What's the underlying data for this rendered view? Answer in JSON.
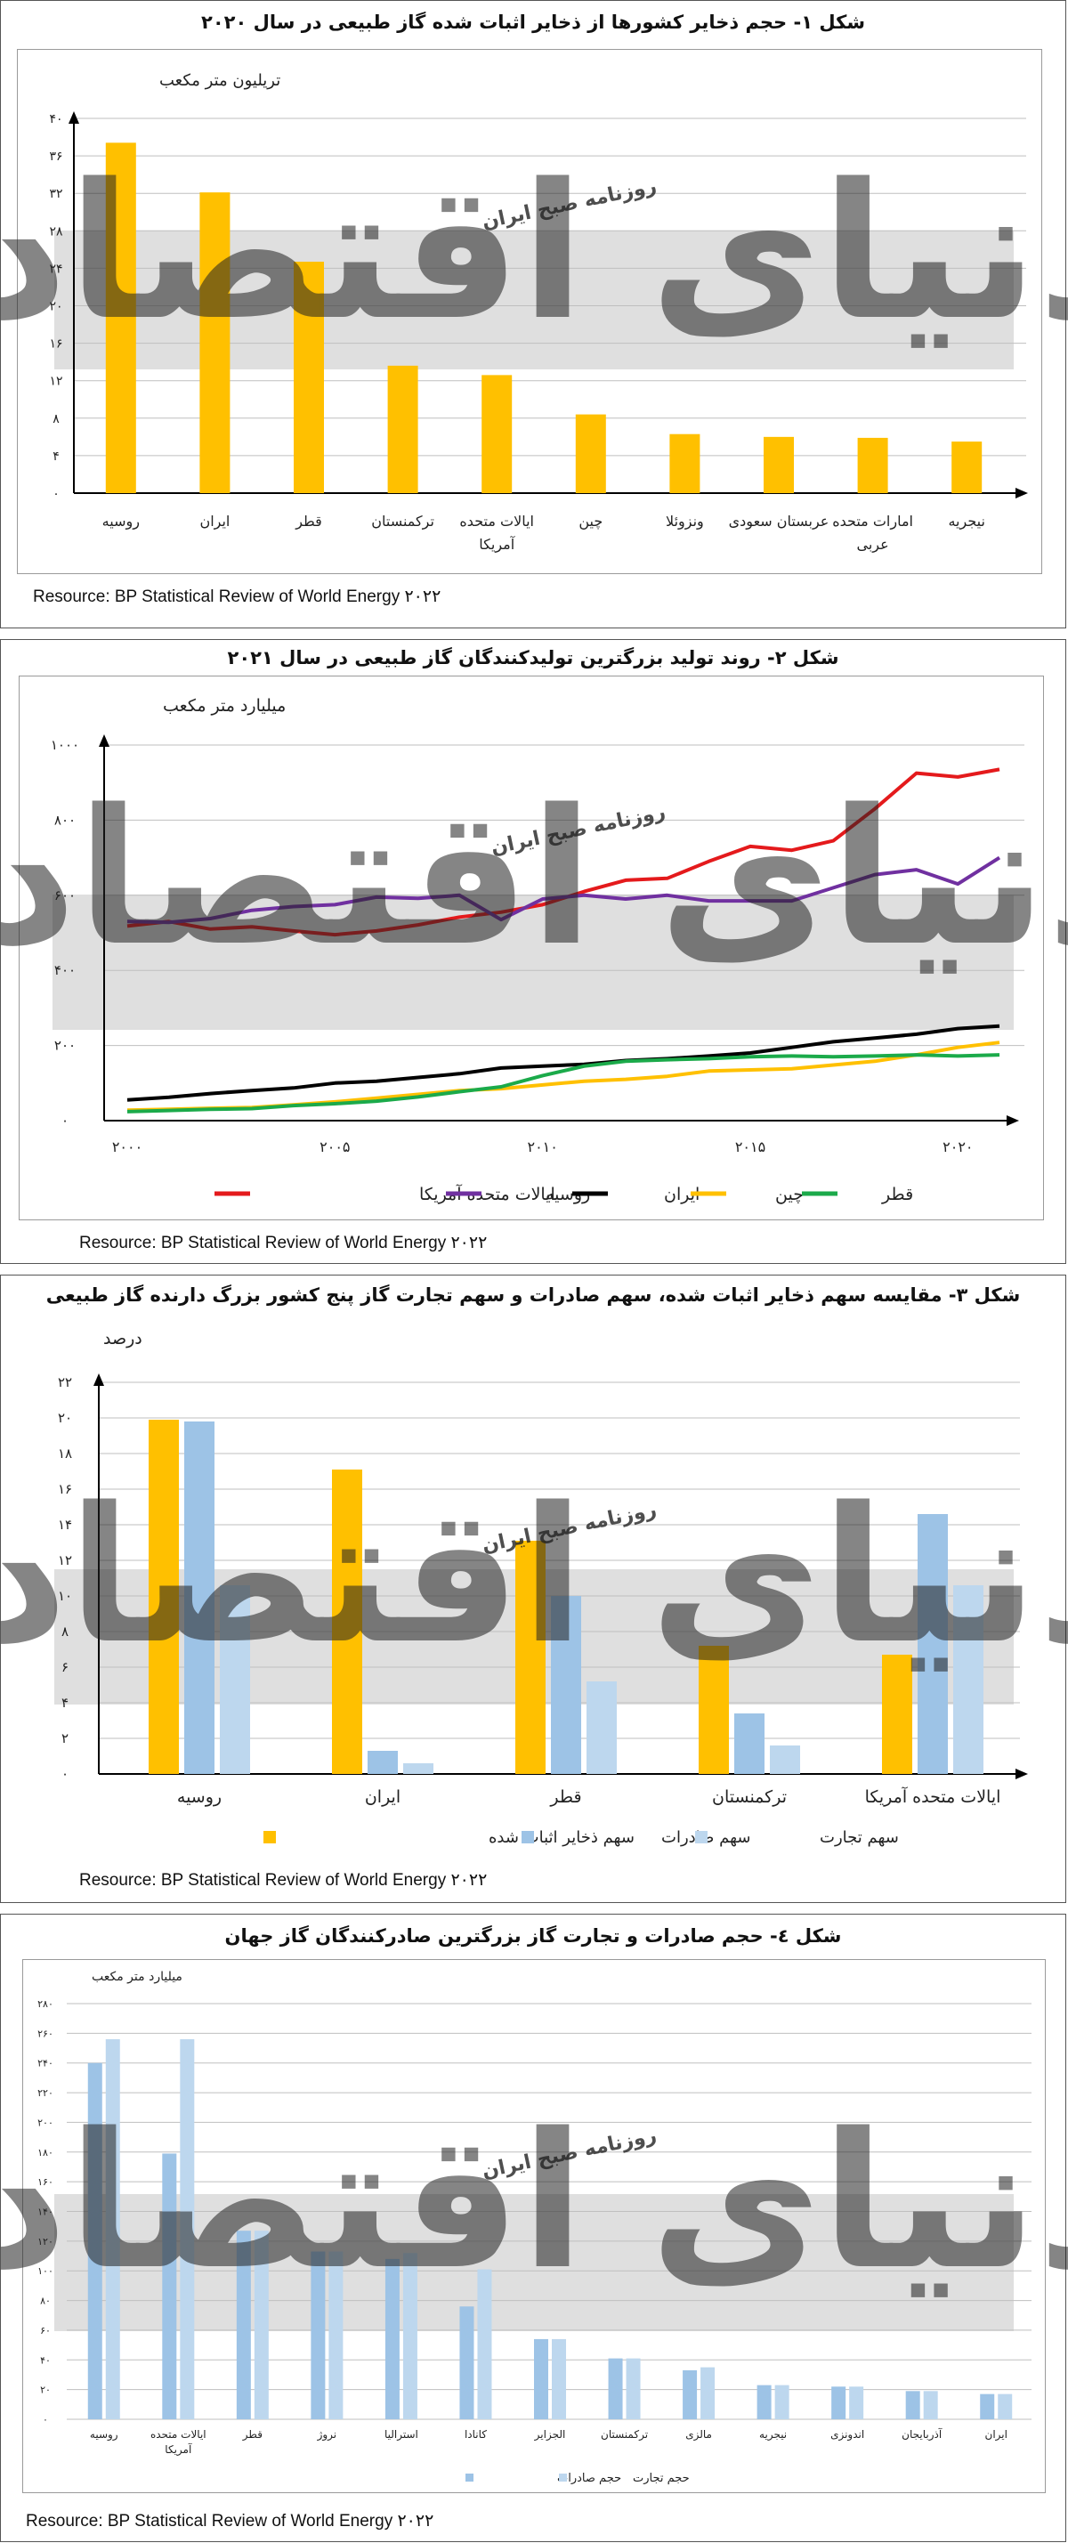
{
  "source_label": "Resource: BP Statistical Review of World Energy ۲۰۲۲",
  "watermark": {
    "brand": "دنیای اقتصاد",
    "tagline": "روزنامه صبح ایران"
  },
  "colors": {
    "yellow": "#FFC000",
    "blue_mid": "#9DC3E6",
    "blue_light": "#BDD7EE",
    "red": "#E41A1C",
    "purple": "#7030A0",
    "black": "#000000",
    "gold": "#FFC000",
    "green": "#1BAA4A",
    "band": "#D9D9D9"
  },
  "chart_data": [
    {
      "id": "fig1",
      "type": "bar",
      "title": "شکل ۱- حجم ذخایر کشورها از ذخایر اثبات شده گاز طبیعی در سال ۲۰۲۰",
      "ylabel": "تریلیون متر مکعب",
      "ylim": [
        0,
        40
      ],
      "yticks": [
        "۰",
        "۴",
        "۸",
        "۱۲",
        "۱۶",
        "۲۰",
        "۲۴",
        "۲۸",
        "۳۲",
        "۳۶",
        "۴۰"
      ],
      "categories": [
        "روسیه",
        "ایران",
        "قطر",
        "ترکمنستان",
        "ایالات متحده آمریکا",
        "چین",
        "ونزوئلا",
        "عربستان سعودی",
        "امارات متحده عربی",
        "نیجریه"
      ],
      "category_lines": [
        [
          "روسیه"
        ],
        [
          "ایران"
        ],
        [
          "قطر"
        ],
        [
          "ترکمنستان"
        ],
        [
          "ایالات متحده",
          "آمریکا"
        ],
        [
          "چین"
        ],
        [
          "ونزوئلا"
        ],
        [
          "عربستان سعودی"
        ],
        [
          "امارات متحده",
          "عربی"
        ],
        [
          "نیجریه"
        ]
      ],
      "values": [
        37.4,
        32.1,
        24.7,
        13.6,
        12.6,
        8.4,
        6.3,
        6.0,
        5.9,
        5.5
      ],
      "grid": true
    },
    {
      "id": "fig2",
      "type": "line",
      "title": "شکل ۲- روند تولید بزرگترین تولیدکنندگان گاز طبیعی در سال ۲۰۲۱",
      "ylabel": "میلیارد متر مکعب",
      "ylim": [
        0,
        1000
      ],
      "yticks": [
        "۰",
        "۲۰۰",
        "۴۰۰",
        "۶۰۰",
        "۸۰۰",
        "۱۰۰۰"
      ],
      "xlim": [
        2000,
        2021
      ],
      "xticks": [
        {
          "value": 2000,
          "label": "۲۰۰۰"
        },
        {
          "value": 2005,
          "label": "۲۰۰۵"
        },
        {
          "value": 2010,
          "label": "۲۰۱۰"
        },
        {
          "value": 2015,
          "label": "۲۰۱۵"
        },
        {
          "value": 2020,
          "label": "۲۰۲۰"
        }
      ],
      "x": [
        2000,
        2001,
        2002,
        2003,
        2004,
        2005,
        2006,
        2007,
        2008,
        2009,
        2010,
        2011,
        2012,
        2013,
        2014,
        2015,
        2016,
        2017,
        2018,
        2019,
        2020,
        2021
      ],
      "series": [
        {
          "name": "ایالات متحده آمریکا",
          "color": "#E41A1C",
          "values": [
            518,
            530,
            510,
            516,
            505,
            495,
            505,
            521,
            542,
            555,
            575,
            610,
            640,
            645,
            690,
            730,
            720,
            745,
            830,
            925,
            915,
            935
          ]
        },
        {
          "name": "روسیه",
          "color": "#7030A0",
          "values": [
            530,
            528,
            538,
            560,
            570,
            575,
            595,
            592,
            600,
            535,
            590,
            600,
            590,
            600,
            585,
            585,
            585,
            620,
            655,
            668,
            630,
            700
          ]
        },
        {
          "name": "ایران",
          "color": "#000000",
          "values": [
            55,
            62,
            72,
            80,
            87,
            100,
            105,
            115,
            125,
            140,
            145,
            150,
            160,
            165,
            172,
            180,
            195,
            210,
            220,
            230,
            245,
            252
          ]
        },
        {
          "name": "چین",
          "color": "#FFC000",
          "values": [
            28,
            30,
            33,
            35,
            42,
            50,
            60,
            70,
            80,
            85,
            95,
            105,
            110,
            118,
            132,
            135,
            138,
            148,
            158,
            175,
            195,
            208
          ]
        },
        {
          "name": "قطر",
          "color": "#1BAA4A",
          "values": [
            24,
            27,
            30,
            32,
            40,
            45,
            52,
            63,
            77,
            90,
            120,
            145,
            158,
            162,
            165,
            170,
            172,
            170,
            172,
            175,
            172,
            175
          ]
        }
      ],
      "grid": true
    },
    {
      "id": "fig3",
      "type": "bar",
      "title": "شکل ۳- مقایسه سهم ذخایر اثبات شده، سهم صادرات و سهم تجارت گاز پنج کشور بزرگ دارنده گاز طبیعی",
      "ylabel": "درصد",
      "ylim": [
        0,
        22
      ],
      "yticks": [
        "۰",
        "۲",
        "۴",
        "۶",
        "۸",
        "۱۰",
        "۱۲",
        "۱۴",
        "۱۶",
        "۱۸",
        "۲۰",
        "۲۲"
      ],
      "categories": [
        "روسیه",
        "ایران",
        "قطر",
        "ترکمنستان",
        "ایالات متحده آمریکا"
      ],
      "series": [
        {
          "name": "سهم ذخایر اثبات شده",
          "color": "#FFC000",
          "values": [
            19.9,
            17.1,
            13.1,
            7.2,
            6.7
          ]
        },
        {
          "name": "سهم صادرات",
          "color": "#9DC3E6",
          "values": [
            19.8,
            1.3,
            10.0,
            3.4,
            14.6
          ]
        },
        {
          "name": "سهم تجارت",
          "color": "#BDD7EE",
          "values": [
            10.6,
            0.6,
            5.2,
            1.6,
            10.6
          ]
        }
      ],
      "grid": true
    },
    {
      "id": "fig4",
      "type": "bar",
      "title": "شکل ٤- حجم صادرات و تجارت گاز بزرگترین صادرکنندگان گاز جهان",
      "ylabel": "میلیارد متر مکعب",
      "ylim": [
        0,
        280
      ],
      "yticks": [
        "۰",
        "۲۰",
        "۴۰",
        "۶۰",
        "۸۰",
        "۱۰۰",
        "۱۲۰",
        "۱۴۰",
        "۱۶۰",
        "۱۸۰",
        "۲۰۰",
        "۲۲۰",
        "۲۴۰",
        "۲۶۰",
        "۲۸۰"
      ],
      "categories": [
        "روسیه",
        "ایالات متحده آمریکا",
        "قطر",
        "نروژ",
        "استرالیا",
        "کانادا",
        "الجزایر",
        "ترکمنستان",
        "مالزی",
        "نیجریه",
        "اندونزی",
        "آذربایجان",
        "ایران"
      ],
      "category_lines": [
        [
          "روسیه"
        ],
        [
          "ایالات متحده",
          "آمریکا"
        ],
        [
          "قطر"
        ],
        [
          "نروژ"
        ],
        [
          "استرالیا"
        ],
        [
          "کانادا"
        ],
        [
          "الجزایر"
        ],
        [
          "ترکمنستان"
        ],
        [
          "مالزی"
        ],
        [
          "نیجریه"
        ],
        [
          "اندونزی"
        ],
        [
          "آذربایجان"
        ],
        [
          "ایران"
        ]
      ],
      "series": [
        {
          "name": "حجم صادرات",
          "color": "#9DC3E6",
          "values": [
            240,
            179,
            127,
            113,
            108,
            76,
            54,
            41,
            33,
            23,
            22,
            19,
            17
          ]
        },
        {
          "name": "حجم تجارت",
          "color": "#BDD7EE",
          "values": [
            256,
            256,
            127,
            113,
            112,
            101,
            54,
            41,
            35,
            23,
            22,
            19,
            17
          ]
        }
      ],
      "grid": true
    }
  ]
}
